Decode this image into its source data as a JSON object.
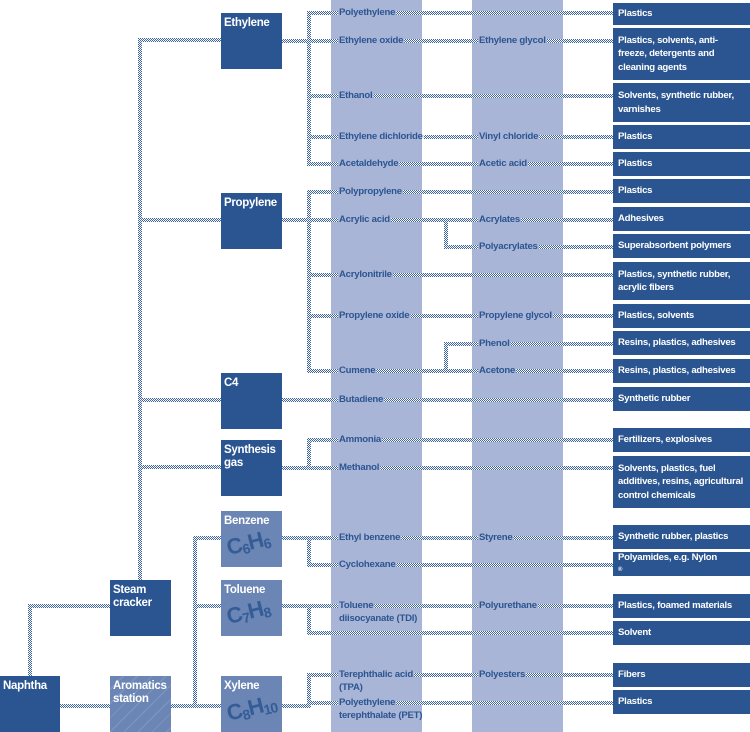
{
  "sources": {
    "naphtha": "Naphtha",
    "steam_cracker": "Steam cracker",
    "aromatics_station": "Aromatics station"
  },
  "basics": {
    "ethylene": "Ethylene",
    "propylene": "Propylene",
    "c4": "C4",
    "synthesis_gas": "Synthesis gas",
    "benzene": "Benzene",
    "benzene_formula": {
      "c": "6",
      "h": "6"
    },
    "toluene": "Toluene",
    "toluene_formula": {
      "c": "7",
      "h": "8"
    },
    "xylene": "Xylene",
    "xylene_formula": {
      "c": "8",
      "h": "10"
    }
  },
  "intermediates": {
    "polyethylene": "Polyethylene",
    "ethylene_oxide": "Ethylene oxide",
    "ethylene_glycol": "Ethylene glycol",
    "ethanol": "Ethanol",
    "ethylene_dichloride": "Ethylene dichloride",
    "vinyl_chloride": "Vinyl chloride",
    "acetaldehyde": "Acetaldehyde",
    "acetic_acid": "Acetic acid",
    "polypropylene": "Polypropylene",
    "acrylic_acid": "Acrylic acid",
    "acrylates": "Acrylates",
    "polyacrylates": "Polyacrylates",
    "acrylonitrile": "Acrylonitrile",
    "propylene_oxide": "Propylene oxide",
    "propylene_glycol": "Propylene glycol",
    "phenol": "Phenol",
    "cumene": "Cumene",
    "acetone": "Acetone",
    "butadiene": "Butadiene",
    "ammonia": "Ammonia",
    "methanol": "Methanol",
    "ethyl_benzene": "Ethyl benzene",
    "styrene": "Styrene",
    "cyclohexane": "Cyclohexane",
    "tdi_1": "Toluene",
    "tdi_2": "diisocyanate (TDI)",
    "polyurethane": "Polyurethane",
    "tpa_1": "Terephthalic acid",
    "tpa_2": "(TPA)",
    "polyesters": "Polyesters",
    "pet_1": "Polyethylene",
    "pet_2": "terephthalate (PET)"
  },
  "applications": [
    "Plastics",
    "Plastics, solvents, anti-freeze, detergents and cleaning agents",
    "Solvents, synthetic rubber, varnishes",
    "Plastics",
    "Plastics",
    "Plastics",
    "Adhesives",
    "Superabsorbent polymers",
    "Plastics, synthetic rubber, acrylic fibers",
    "Plastics, solvents",
    "Resins, plastics, adhesives",
    "Resins, plastics, adhesives",
    "Synthetic rubber",
    "Fertilizers, explosives",
    "Solvents, plastics, fuel additives, resins, agricultural control chemicals",
    "Synthetic rubber, plastics",
    "Polyamides, e.g. Nylon",
    "Plastics, foamed materials",
    "Solvent",
    "Fibers",
    "Plastics"
  ],
  "registered_mark": "®",
  "colors": {
    "dark_box": "#2b5591",
    "light_box": "#6b85b5",
    "band": "#a9b5d6",
    "line": "#3f64a6"
  }
}
